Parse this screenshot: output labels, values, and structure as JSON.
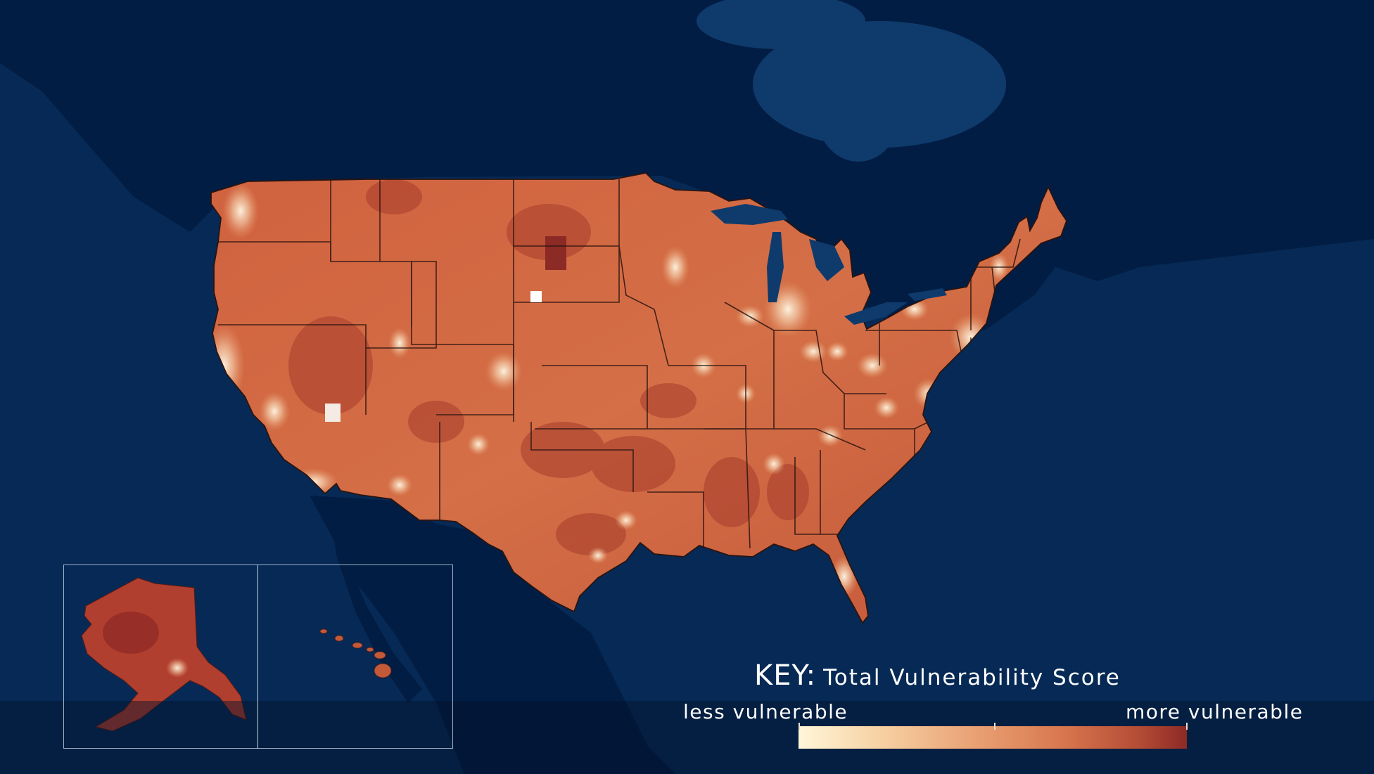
{
  "colors": {
    "ocean": "#062a55",
    "land_background": "#021c42",
    "low_vulnerability": "#fff6d8",
    "mid_vulnerability": "#e08a5e",
    "high_vulnerability": "#8c2a25",
    "borders": "#2a1410"
  },
  "insets": [
    "Alaska",
    "Hawaii"
  ],
  "key": {
    "prefix": "KEY:",
    "title": "Total Vulnerability Score",
    "low_label": "less vulnerable",
    "high_label": "more vulnerable"
  }
}
